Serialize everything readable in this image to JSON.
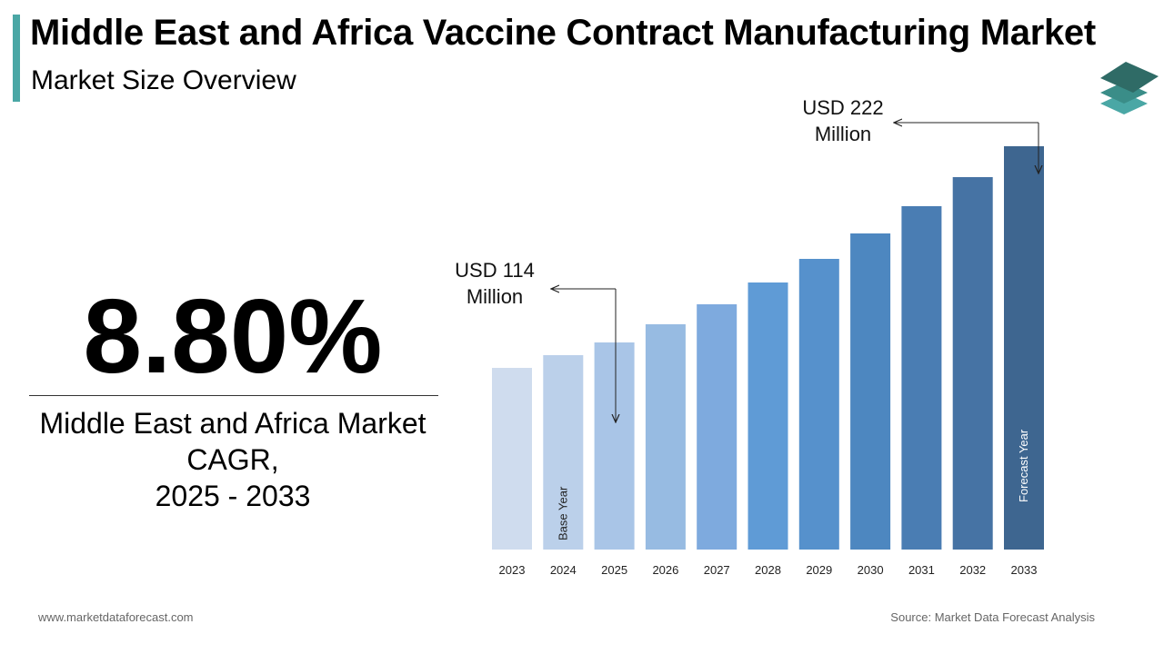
{
  "header": {
    "title": "Middle East and Africa Vaccine Contract Manufacturing Market",
    "subtitle": "Market Size Overview"
  },
  "cagr": {
    "value": "8.80%",
    "label_lines": [
      "Middle East and Africa Market",
      "CAGR,",
      "2025 - 2033"
    ]
  },
  "footer": {
    "website": "www.marketdataforecast.com",
    "source": "Source: Market Data Forecast Analysis"
  },
  "colors": {
    "accent": "#4aa7a5",
    "bars": [
      "#cfdcee",
      "#bbd0ea",
      "#a9c5e7",
      "#97bbe2",
      "#7eaade",
      "#5f9bd6",
      "#5691cc",
      "#4d87c0",
      "#4a7db3",
      "#4673a4",
      "#3e6690"
    ]
  },
  "chart_data": {
    "type": "bar",
    "categories": [
      "2023",
      "2024",
      "2025",
      "2026",
      "2027",
      "2028",
      "2029",
      "2030",
      "2031",
      "2032",
      "2033"
    ],
    "values": [
      100,
      107,
      114,
      124,
      135,
      147,
      160,
      174,
      189,
      205,
      222
    ],
    "ylim": [
      0,
      250
    ],
    "annotations": [
      {
        "category": "2025",
        "line1": "USD 114",
        "line2": "Million"
      },
      {
        "category": "2033",
        "line1": "USD 222",
        "line2": "Million"
      }
    ],
    "bar_labels": [
      {
        "category": "2024",
        "text": "Base Year"
      },
      {
        "category": "2033",
        "text": "Forecast Year"
      }
    ]
  }
}
